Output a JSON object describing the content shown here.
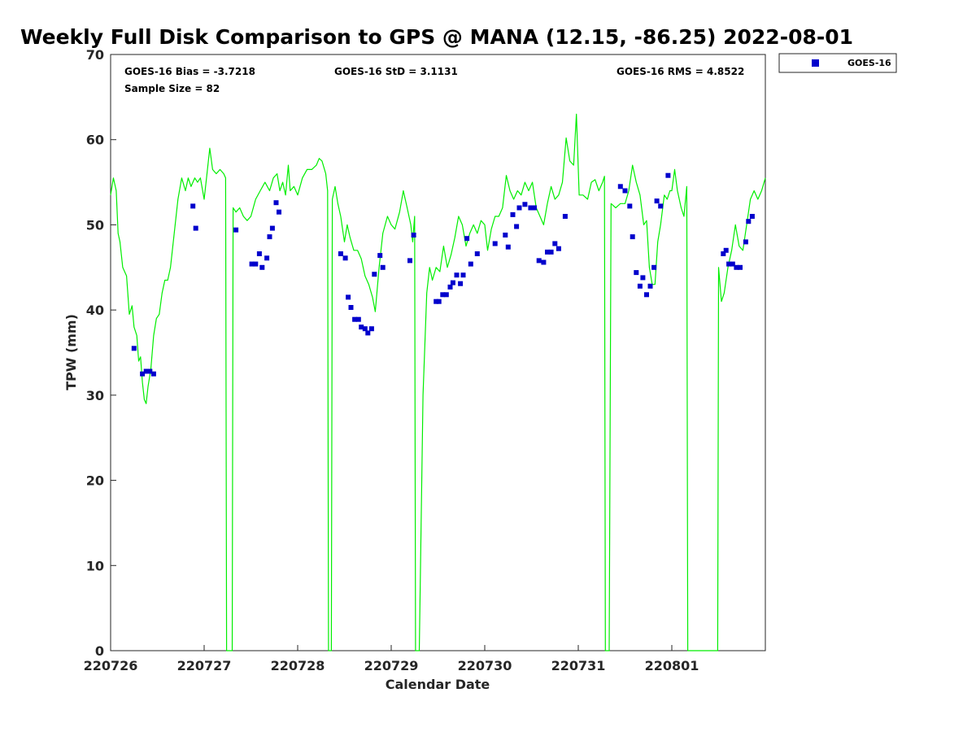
{
  "chart_data": {
    "type": "scatter",
    "title": "Weekly Full Disk Comparison to GPS @ MANA (12.15, -86.25) 2022-08-01",
    "xlabel": "Calendar Date",
    "ylabel": "TPW (mm)",
    "xlim": [
      0,
      7
    ],
    "ylim": [
      0,
      70
    ],
    "xticks": [
      0,
      1,
      2,
      3,
      4,
      5,
      6
    ],
    "xtick_labels": [
      "220726",
      "220727",
      "220728",
      "220729",
      "220730",
      "220731",
      "220801"
    ],
    "yticks": [
      0,
      10,
      20,
      30,
      40,
      50,
      60,
      70
    ],
    "ytick_labels": [
      "0",
      "10",
      "20",
      "30",
      "40",
      "50",
      "60",
      "70"
    ],
    "stats": {
      "bias": "GOES-16 Bias = -3.7218",
      "std": "GOES-16 StD = 3.1131",
      "rms": "GOES-16 RMS = 4.8522",
      "sample": "Sample Size = 82"
    },
    "legend": {
      "label": "GOES-16",
      "color": "#0000cc",
      "placement": "outside-top-right"
    },
    "series": [
      {
        "name": "GPS",
        "kind": "line",
        "color": "#00ee00",
        "points": [
          [
            0,
            53.5
          ],
          [
            0.03,
            55.5
          ],
          [
            0.06,
            54
          ],
          [
            0.08,
            49
          ],
          [
            0.1,
            48
          ],
          [
            0.13,
            45
          ],
          [
            0.17,
            44
          ],
          [
            0.2,
            39.5
          ],
          [
            0.23,
            40.5
          ],
          [
            0.25,
            38
          ],
          [
            0.28,
            37
          ],
          [
            0.3,
            34
          ],
          [
            0.32,
            34.5
          ],
          [
            0.34,
            31.5
          ],
          [
            0.36,
            29.5
          ],
          [
            0.38,
            29
          ],
          [
            0.4,
            31
          ],
          [
            0.43,
            33
          ],
          [
            0.46,
            37
          ],
          [
            0.49,
            39
          ],
          [
            0.52,
            39.5
          ],
          [
            0.55,
            42
          ],
          [
            0.58,
            43.5
          ],
          [
            0.61,
            43.5
          ],
          [
            0.64,
            45
          ],
          [
            0.68,
            49
          ],
          [
            0.72,
            53
          ],
          [
            0.76,
            55.5
          ],
          [
            0.8,
            54
          ],
          [
            0.83,
            55.5
          ],
          [
            0.86,
            54.5
          ],
          [
            0.9,
            55.5
          ],
          [
            0.93,
            55
          ],
          [
            0.96,
            55.5
          ],
          [
            1.0,
            53
          ],
          [
            1.03,
            56
          ],
          [
            1.06,
            59
          ],
          [
            1.09,
            56.5
          ],
          [
            1.13,
            56
          ],
          [
            1.17,
            56.5
          ],
          [
            1.21,
            56
          ],
          [
            1.23,
            55.5
          ],
          [
            1.24,
            0
          ],
          [
            1.3,
            0
          ],
          [
            1.31,
            52
          ],
          [
            1.34,
            51.5
          ],
          [
            1.38,
            52
          ],
          [
            1.42,
            51
          ],
          [
            1.46,
            50.5
          ],
          [
            1.5,
            51
          ],
          [
            1.55,
            53
          ],
          [
            1.6,
            54
          ],
          [
            1.65,
            55
          ],
          [
            1.7,
            54
          ],
          [
            1.74,
            55.5
          ],
          [
            1.78,
            56
          ],
          [
            1.81,
            54
          ],
          [
            1.84,
            55
          ],
          [
            1.87,
            53.5
          ],
          [
            1.9,
            57
          ],
          [
            1.92,
            54
          ],
          [
            1.96,
            54.5
          ],
          [
            2.0,
            53.5
          ],
          [
            2.05,
            55.5
          ],
          [
            2.1,
            56.5
          ],
          [
            2.15,
            56.5
          ],
          [
            2.2,
            57
          ],
          [
            2.23,
            57.8
          ],
          [
            2.26,
            57.5
          ],
          [
            2.3,
            56
          ],
          [
            2.32,
            54
          ],
          [
            2.33,
            0
          ],
          [
            2.36,
            0
          ],
          [
            2.37,
            53
          ],
          [
            2.4,
            54.5
          ],
          [
            2.43,
            52.5
          ],
          [
            2.46,
            51
          ],
          [
            2.5,
            48
          ],
          [
            2.53,
            50
          ],
          [
            2.56,
            48.5
          ],
          [
            2.6,
            47
          ],
          [
            2.64,
            47
          ],
          [
            2.68,
            46
          ],
          [
            2.72,
            44
          ],
          [
            2.76,
            43
          ],
          [
            2.8,
            41.5
          ],
          [
            2.83,
            39.8
          ],
          [
            2.87,
            45
          ],
          [
            2.91,
            49
          ],
          [
            2.96,
            51
          ],
          [
            3.0,
            50
          ],
          [
            3.04,
            49.5
          ],
          [
            3.09,
            51.5
          ],
          [
            3.13,
            54
          ],
          [
            3.17,
            52
          ],
          [
            3.21,
            50
          ],
          [
            3.23,
            48
          ],
          [
            3.25,
            51
          ],
          [
            3.26,
            0
          ],
          [
            3.3,
            0
          ],
          [
            3.34,
            30
          ],
          [
            3.38,
            42
          ],
          [
            3.41,
            45
          ],
          [
            3.44,
            43.5
          ],
          [
            3.48,
            45
          ],
          [
            3.52,
            44.5
          ],
          [
            3.56,
            47.5
          ],
          [
            3.6,
            45
          ],
          [
            3.64,
            46.5
          ],
          [
            3.68,
            48.5
          ],
          [
            3.72,
            51
          ],
          [
            3.76,
            50
          ],
          [
            3.8,
            47.5
          ],
          [
            3.84,
            49
          ],
          [
            3.88,
            50
          ],
          [
            3.92,
            49
          ],
          [
            3.96,
            50.5
          ],
          [
            4.0,
            50
          ],
          [
            4.03,
            47
          ],
          [
            4.07,
            49.5
          ],
          [
            4.11,
            51
          ],
          [
            4.15,
            51
          ],
          [
            4.19,
            52
          ],
          [
            4.23,
            55.8
          ],
          [
            4.27,
            54
          ],
          [
            4.31,
            53
          ],
          [
            4.35,
            54
          ],
          [
            4.39,
            53.5
          ],
          [
            4.43,
            55
          ],
          [
            4.47,
            54
          ],
          [
            4.51,
            55
          ],
          [
            4.55,
            52
          ],
          [
            4.59,
            51
          ],
          [
            4.63,
            50
          ],
          [
            4.67,
            52.5
          ],
          [
            4.71,
            54.5
          ],
          [
            4.75,
            53
          ],
          [
            4.79,
            53.5
          ],
          [
            4.83,
            55
          ],
          [
            4.87,
            60.2
          ],
          [
            4.91,
            57.5
          ],
          [
            4.95,
            57
          ],
          [
            4.98,
            63
          ],
          [
            5.01,
            53.5
          ],
          [
            5.05,
            53.5
          ],
          [
            5.1,
            53
          ],
          [
            5.14,
            55
          ],
          [
            5.18,
            55.3
          ],
          [
            5.22,
            54
          ],
          [
            5.26,
            55
          ],
          [
            5.28,
            55.7
          ],
          [
            5.29,
            0
          ],
          [
            5.33,
            0
          ],
          [
            5.35,
            52.5
          ],
          [
            5.4,
            52
          ],
          [
            5.45,
            52.5
          ],
          [
            5.5,
            52.5
          ],
          [
            5.54,
            54
          ],
          [
            5.58,
            57
          ],
          [
            5.62,
            55
          ],
          [
            5.66,
            53.5
          ],
          [
            5.7,
            50
          ],
          [
            5.73,
            50.5
          ],
          [
            5.76,
            45
          ],
          [
            5.79,
            43
          ],
          [
            5.82,
            43
          ],
          [
            5.85,
            48
          ],
          [
            5.88,
            50
          ],
          [
            5.92,
            53.5
          ],
          [
            5.95,
            53
          ],
          [
            5.98,
            54
          ],
          [
            6.0,
            54
          ],
          [
            6.03,
            56.5
          ],
          [
            6.06,
            54
          ],
          [
            6.1,
            52
          ],
          [
            6.13,
            51
          ],
          [
            6.16,
            54.5
          ],
          [
            6.17,
            0
          ],
          [
            6.49,
            0
          ],
          [
            6.5,
            45
          ],
          [
            6.53,
            41
          ],
          [
            6.56,
            42
          ],
          [
            6.6,
            45
          ],
          [
            6.64,
            47
          ],
          [
            6.68,
            50
          ],
          [
            6.72,
            47.5
          ],
          [
            6.76,
            47
          ],
          [
            6.8,
            50
          ],
          [
            6.84,
            53
          ],
          [
            6.88,
            54
          ],
          [
            6.92,
            53
          ],
          [
            6.96,
            54
          ],
          [
            7.0,
            55.5
          ]
        ]
      },
      {
        "name": "GOES-16",
        "kind": "markers",
        "color": "#0000cc",
        "points": [
          [
            0.25,
            35.5
          ],
          [
            0.34,
            32.5
          ],
          [
            0.38,
            32.8
          ],
          [
            0.42,
            32.8
          ],
          [
            0.46,
            32.5
          ],
          [
            0.88,
            52.2
          ],
          [
            0.91,
            49.6
          ],
          [
            1.34,
            49.4
          ],
          [
            1.51,
            45.4
          ],
          [
            1.55,
            45.4
          ],
          [
            1.59,
            46.6
          ],
          [
            1.62,
            45
          ],
          [
            1.67,
            46.1
          ],
          [
            1.7,
            48.6
          ],
          [
            1.73,
            49.6
          ],
          [
            1.77,
            52.6
          ],
          [
            1.8,
            51.5
          ],
          [
            2.46,
            46.6
          ],
          [
            2.51,
            46.1
          ],
          [
            2.54,
            41.5
          ],
          [
            2.57,
            40.3
          ],
          [
            2.61,
            38.9
          ],
          [
            2.65,
            38.9
          ],
          [
            2.68,
            38
          ],
          [
            2.72,
            37.8
          ],
          [
            2.75,
            37.3
          ],
          [
            2.79,
            37.8
          ],
          [
            2.82,
            44.2
          ],
          [
            2.88,
            46.4
          ],
          [
            2.91,
            45
          ],
          [
            3.2,
            45.8
          ],
          [
            3.24,
            48.8
          ],
          [
            3.48,
            41
          ],
          [
            3.51,
            41
          ],
          [
            3.55,
            41.8
          ],
          [
            3.59,
            41.8
          ],
          [
            3.63,
            42.7
          ],
          [
            3.66,
            43.2
          ],
          [
            3.7,
            44.1
          ],
          [
            3.74,
            43.1
          ],
          [
            3.77,
            44.1
          ],
          [
            3.81,
            48.4
          ],
          [
            3.85,
            45.4
          ],
          [
            3.92,
            46.6
          ],
          [
            4.11,
            47.8
          ],
          [
            4.22,
            48.8
          ],
          [
            4.25,
            47.4
          ],
          [
            4.3,
            51.2
          ],
          [
            4.34,
            49.8
          ],
          [
            4.37,
            52
          ],
          [
            4.43,
            52.4
          ],
          [
            4.49,
            52
          ],
          [
            4.53,
            52
          ],
          [
            4.58,
            45.8
          ],
          [
            4.63,
            45.6
          ],
          [
            4.67,
            46.8
          ],
          [
            4.71,
            46.8
          ],
          [
            4.75,
            47.8
          ],
          [
            4.79,
            47.2
          ],
          [
            4.86,
            51
          ],
          [
            5.45,
            54.5
          ],
          [
            5.5,
            54
          ],
          [
            5.55,
            52.2
          ],
          [
            5.58,
            48.6
          ],
          [
            5.62,
            44.4
          ],
          [
            5.66,
            42.8
          ],
          [
            5.69,
            43.8
          ],
          [
            5.73,
            41.8
          ],
          [
            5.77,
            42.8
          ],
          [
            5.81,
            45
          ],
          [
            5.84,
            52.8
          ],
          [
            5.88,
            52.2
          ],
          [
            5.96,
            55.8
          ],
          [
            6.55,
            46.6
          ],
          [
            6.58,
            47
          ],
          [
            6.61,
            45.4
          ],
          [
            6.65,
            45.4
          ],
          [
            6.69,
            45
          ],
          [
            6.73,
            45
          ],
          [
            6.79,
            48
          ],
          [
            6.82,
            50.4
          ],
          [
            6.86,
            51
          ]
        ]
      }
    ]
  }
}
